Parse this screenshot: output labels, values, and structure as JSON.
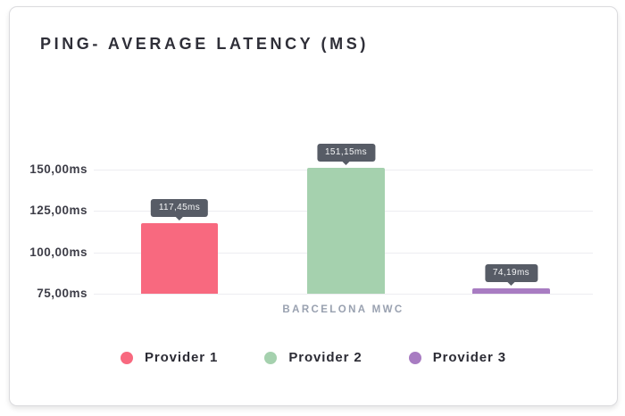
{
  "header": {
    "title": "PING- AVERAGE LATENCY (MS)"
  },
  "chart_data": {
    "type": "bar",
    "title": "PING- AVERAGE LATENCY (MS)",
    "categories": [
      "BARCELONA MWC"
    ],
    "series": [
      {
        "name": "Provider 1",
        "color": "#f8697f",
        "values": [
          117.45
        ],
        "data_label": "117,45ms"
      },
      {
        "name": "Provider 2",
        "color": "#a5d1ae",
        "values": [
          151.15
        ],
        "data_label": "151,15ms"
      },
      {
        "name": "Provider 3",
        "color": "#a87cc2",
        "values": [
          74.19
        ],
        "data_label": "74,19ms"
      }
    ],
    "yticks": [
      {
        "value": 150,
        "label": "150,00ms"
      },
      {
        "value": 125,
        "label": "125,00ms"
      },
      {
        "value": 100,
        "label": "100,00ms"
      },
      {
        "value": 75,
        "label": "75,00ms"
      }
    ],
    "ylim": [
      75,
      162.5
    ],
    "xlabel": "",
    "ylabel": "",
    "grid": true,
    "legend_position": "bottom",
    "tooltip_background": "#575c66"
  }
}
